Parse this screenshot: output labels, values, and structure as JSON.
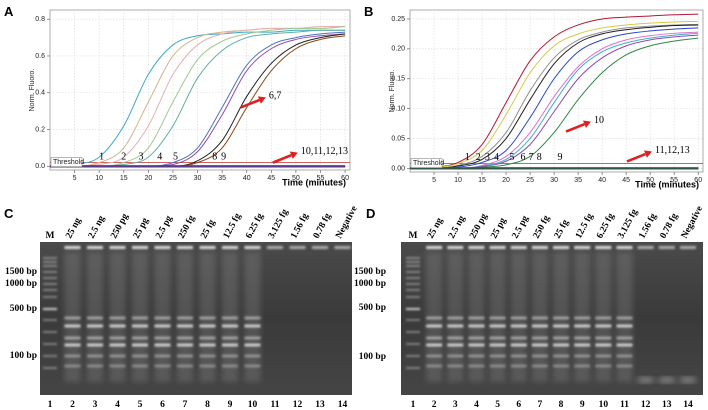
{
  "chart_data": [
    {
      "type": "line",
      "panel": "A",
      "y_label": "Norm. Fluoro.",
      "x_label": "Time (minutes)",
      "x": [
        0,
        5,
        10,
        15,
        20,
        25,
        30,
        35,
        40,
        45,
        50,
        55,
        60
      ],
      "xlim": [
        0,
        61
      ],
      "ylim": [
        -0.02,
        0.85
      ],
      "xticks": [
        5,
        10,
        15,
        20,
        25,
        30,
        35,
        40,
        45,
        50,
        55,
        60
      ],
      "yticks": [
        {
          "value": 0,
          "label": "0.0"
        },
        0.2,
        0.4,
        0.6,
        0.8
      ],
      "grid": true,
      "threshold": {
        "label": "Threshold",
        "value": 0.02
      },
      "series": [
        {
          "color": "#3fa8c8",
          "values": [
            0,
            0.01,
            0.05,
            0.22,
            0.5,
            0.66,
            0.71,
            0.72,
            0.73,
            0.73,
            0.74,
            0.74,
            0.74
          ]
        },
        {
          "color": "#d2b48c",
          "values": [
            0,
            0,
            0.02,
            0.1,
            0.35,
            0.6,
            0.7,
            0.73,
            0.74,
            0.75,
            0.75,
            0.75,
            0.76
          ]
        },
        {
          "color": "#e8b0b0",
          "values": [
            0,
            0,
            0.01,
            0.05,
            0.22,
            0.5,
            0.66,
            0.72,
            0.74,
            0.75,
            0.75,
            0.76,
            0.76
          ]
        },
        {
          "color": "#a0c890",
          "values": [
            0,
            0,
            0,
            0.02,
            0.1,
            0.35,
            0.58,
            0.68,
            0.72,
            0.74,
            0.75,
            0.75,
            0.76
          ]
        },
        {
          "color": "#60b0a0",
          "values": [
            0,
            0,
            0,
            0.01,
            0.05,
            0.22,
            0.48,
            0.63,
            0.7,
            0.72,
            0.73,
            0.74,
            0.74
          ]
        },
        {
          "color": "#5070c0",
          "values": [
            0,
            0,
            0,
            0,
            0,
            0.02,
            0.1,
            0.32,
            0.55,
            0.66,
            0.7,
            0.72,
            0.73
          ]
        },
        {
          "color": "#9050a0",
          "values": [
            0,
            0,
            0,
            0,
            0,
            0.01,
            0.08,
            0.28,
            0.52,
            0.64,
            0.69,
            0.71,
            0.72
          ]
        },
        {
          "color": "#202020",
          "values": [
            0,
            0,
            0,
            0,
            0,
            0,
            0.03,
            0.14,
            0.38,
            0.56,
            0.66,
            0.7,
            0.72
          ]
        },
        {
          "color": "#8b4513",
          "values": [
            0,
            0,
            0,
            0,
            0,
            0,
            0.02,
            0.1,
            0.32,
            0.52,
            0.64,
            0.69,
            0.71
          ]
        },
        {
          "color": "#4b2a6b",
          "values": [
            0,
            0,
            0,
            0,
            0,
            0,
            0,
            0,
            0,
            0,
            0,
            0,
            0
          ]
        },
        {
          "color": "#6a2a7b",
          "values": [
            0,
            0,
            0,
            0,
            0,
            0,
            0,
            0,
            0,
            0,
            0,
            0,
            0
          ]
        },
        {
          "color": "#3a2a6b",
          "values": [
            0,
            0,
            0,
            0,
            0,
            0,
            0,
            0,
            0,
            0,
            0,
            0,
            0
          ]
        },
        {
          "color": "#5a3a8b",
          "values": [
            0,
            0,
            0,
            0,
            0,
            0,
            0,
            0,
            0,
            0,
            0,
            0,
            0
          ]
        }
      ],
      "annotations": [
        {
          "text": "1",
          "x": 10,
          "y": 0.05
        },
        {
          "text": "2",
          "x": 14.5,
          "y": 0.05
        },
        {
          "text": "3",
          "x": 18,
          "y": 0.05
        },
        {
          "text": "4",
          "x": 21.8,
          "y": 0.05
        },
        {
          "text": "5",
          "x": 25,
          "y": 0.05
        },
        {
          "text": "8",
          "x": 33,
          "y": 0.05
        },
        {
          "text": "9",
          "x": 34.8,
          "y": 0.05
        },
        {
          "text": "6,7",
          "x": 44.5,
          "y": 0.38,
          "arrow": true
        },
        {
          "text": "10,11,12,13",
          "x": 51,
          "y": 0.08,
          "arrow": true
        }
      ]
    },
    {
      "type": "line",
      "panel": "B",
      "y_label": "Norm. Fluoro.",
      "x_label": "Time (minutes)",
      "x": [
        0,
        5,
        10,
        15,
        20,
        25,
        30,
        35,
        40,
        45,
        50,
        55,
        60
      ],
      "xlim": [
        0,
        61
      ],
      "ylim": [
        -0.006,
        0.265
      ],
      "xticks": [
        5,
        10,
        15,
        20,
        25,
        30,
        35,
        40,
        45,
        50,
        55,
        60
      ],
      "yticks": [
        {
          "value": 0,
          "label": "0.00"
        },
        0.05,
        {
          "value": 0.1,
          "label": "0.10"
        },
        0.15,
        {
          "value": 0.2,
          "label": "0.20"
        },
        0.25
      ],
      "grid": true,
      "threshold": {
        "label": "Threshold",
        "value": 0.008
      },
      "series": [
        {
          "color": "#b01838",
          "values": [
            0,
            0.002,
            0.01,
            0.04,
            0.11,
            0.18,
            0.22,
            0.24,
            0.25,
            0.253,
            0.255,
            0.257,
            0.258
          ]
        },
        {
          "color": "#d8c848",
          "values": [
            0,
            0.001,
            0.008,
            0.03,
            0.09,
            0.16,
            0.205,
            0.225,
            0.235,
            0.24,
            0.243,
            0.245,
            0.246
          ]
        },
        {
          "color": "#909090",
          "values": [
            0,
            0,
            0.005,
            0.02,
            0.06,
            0.13,
            0.185,
            0.215,
            0.228,
            0.235,
            0.238,
            0.24,
            0.241
          ]
        },
        {
          "color": "#202020",
          "values": [
            0,
            0,
            0.004,
            0.015,
            0.05,
            0.115,
            0.175,
            0.21,
            0.225,
            0.232,
            0.236,
            0.239,
            0.24
          ]
        },
        {
          "color": "#2848c0",
          "values": [
            0,
            0,
            0.002,
            0.01,
            0.03,
            0.085,
            0.15,
            0.195,
            0.215,
            0.225,
            0.23,
            0.233,
            0.235
          ]
        },
        {
          "color": "#e070d0",
          "values": [
            0,
            0,
            0,
            0.005,
            0.02,
            0.06,
            0.12,
            0.17,
            0.2,
            0.215,
            0.222,
            0.226,
            0.228
          ]
        },
        {
          "color": "#40b0c0",
          "values": [
            0,
            0,
            0,
            0.004,
            0.015,
            0.05,
            0.11,
            0.165,
            0.195,
            0.21,
            0.218,
            0.223,
            0.226
          ]
        },
        {
          "color": "#9048b0",
          "values": [
            0,
            0,
            0,
            0.003,
            0.012,
            0.04,
            0.095,
            0.15,
            0.185,
            0.205,
            0.215,
            0.22,
            0.223
          ]
        },
        {
          "color": "#308848",
          "values": [
            0,
            0,
            0,
            0.002,
            0.006,
            0.02,
            0.06,
            0.115,
            0.16,
            0.19,
            0.205,
            0.213,
            0.218
          ]
        },
        {
          "color": "#307070",
          "values": [
            0,
            0,
            0,
            0,
            0,
            0,
            0,
            0,
            0,
            0,
            0,
            0,
            0
          ]
        },
        {
          "color": "#2a6a50",
          "values": [
            0,
            0,
            0,
            0,
            0,
            0,
            0,
            0,
            0,
            0,
            0,
            0,
            0
          ]
        },
        {
          "color": "#406080",
          "values": [
            0,
            0,
            0,
            0,
            0,
            0,
            0,
            0,
            0,
            0,
            0,
            0,
            0
          ]
        },
        {
          "color": "#305848",
          "values": [
            0,
            0,
            0,
            0,
            0,
            0,
            0,
            0,
            0,
            0,
            0,
            0,
            0
          ]
        }
      ],
      "annotations": [
        {
          "text": "1",
          "x": 11.4,
          "y": 0.018
        },
        {
          "text": "2",
          "x": 13.7,
          "y": 0.018
        },
        {
          "text": "3",
          "x": 15.6,
          "y": 0.018
        },
        {
          "text": "4",
          "x": 17.5,
          "y": 0.018
        },
        {
          "text": "5",
          "x": 20.7,
          "y": 0.018
        },
        {
          "text": "6",
          "x": 23,
          "y": 0.018
        },
        {
          "text": "7",
          "x": 24.7,
          "y": 0.018
        },
        {
          "text": "8",
          "x": 26.4,
          "y": 0.018
        },
        {
          "text": "9",
          "x": 30.7,
          "y": 0.018
        },
        {
          "text": "10",
          "x": 38.3,
          "y": 0.08,
          "arrow": true
        },
        {
          "text": "11,12,13",
          "x": 51,
          "y": 0.03,
          "arrow": true
        }
      ]
    }
  ],
  "gels": [
    {
      "panel": "C",
      "marker": "M",
      "samples": [
        "25 ng",
        "2.5 ng",
        "250 pg",
        "25 pg",
        "2.5 pg",
        "250 fg",
        "25 fg",
        "12.5 fg",
        "6.25 fg",
        "3.125 fg",
        "1.56 fg",
        "0.78 fg",
        "Negative"
      ],
      "sizes": [
        "1500 bp",
        "1000 bp",
        "500 bp",
        "100 bp"
      ],
      "lanes": [
        "1",
        "2",
        "3",
        "4",
        "5",
        "6",
        "7",
        "8",
        "9",
        "10",
        "11",
        "12",
        "13",
        "14"
      ]
    },
    {
      "panel": "D",
      "marker": "M",
      "samples": [
        "25 ng",
        "2.5 ng",
        "250 pg",
        "25 pg",
        "2.5 pg",
        "250 fg",
        "25 fg",
        "12.5 fg",
        "6.25 fg",
        "3.125 fg",
        "1.56 fg",
        "0.78 fg",
        "Negative"
      ],
      "sizes": [
        "1500 bp",
        "1000 bp",
        "500 bp",
        "100 bp"
      ],
      "lanes": [
        "1",
        "2",
        "3",
        "4",
        "5",
        "6",
        "7",
        "8",
        "9",
        "10",
        "11",
        "12",
        "13",
        "14"
      ]
    }
  ]
}
